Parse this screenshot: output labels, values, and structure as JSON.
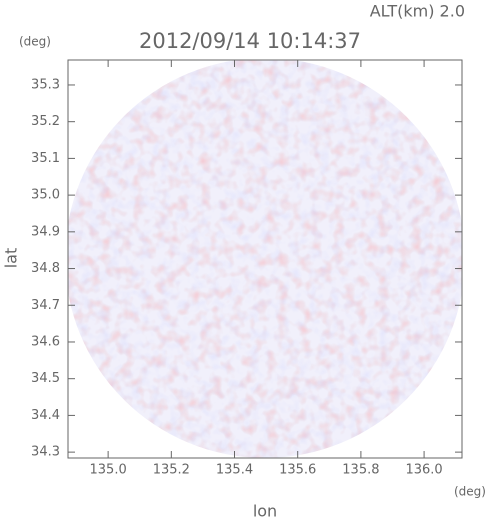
{
  "chart_data": {
    "type": "radar-field",
    "title": "2012/09/14 10:14:37",
    "annotation": "ALT(km) 2.0",
    "x_label": "lon",
    "y_label": "lat",
    "x_unit": "(deg)",
    "y_unit": "(deg)",
    "xlim": [
      134.873,
      136.12
    ],
    "ylim": [
      34.284,
      35.368
    ],
    "xticks": [
      {
        "value": 135,
        "label": "135.0"
      },
      135.2,
      135.4,
      135.6,
      135.8,
      {
        "value": 136,
        "label": "136.0"
      }
    ],
    "yticks": [
      34.3,
      34.4,
      34.5,
      34.6,
      34.7,
      34.8,
      34.9,
      {
        "value": 35,
        "label": "35.0"
      },
      35.1,
      35.2,
      35.3
    ]
  }
}
